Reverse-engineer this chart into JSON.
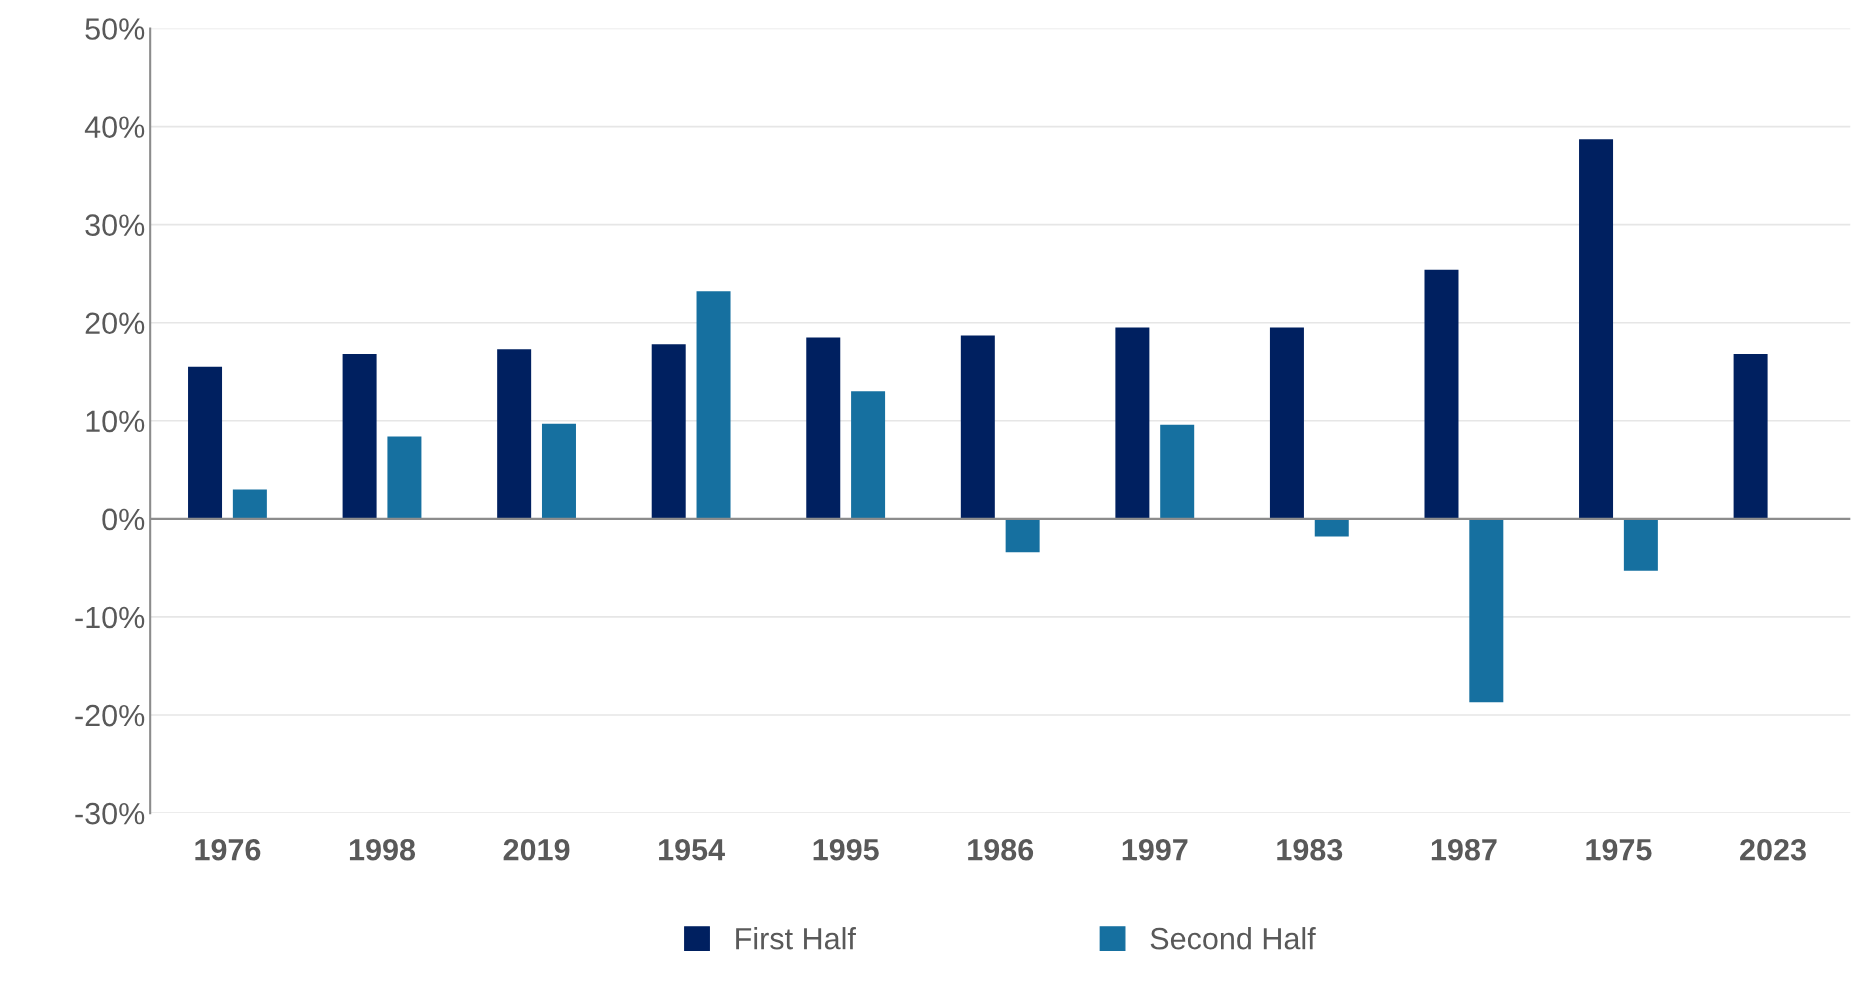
{
  "chart_data": {
    "type": "bar",
    "categories": [
      "1976",
      "1998",
      "2019",
      "1954",
      "1995",
      "1986",
      "1997",
      "1983",
      "1987",
      "1975",
      "2023"
    ],
    "series": [
      {
        "name": "First Half",
        "color": "#002060",
        "values": [
          15.5,
          16.8,
          17.3,
          17.8,
          18.5,
          18.7,
          19.5,
          19.5,
          25.4,
          38.7,
          16.8
        ]
      },
      {
        "name": "Second Half",
        "color": "#1670a0",
        "values": [
          3.0,
          8.4,
          9.7,
          23.2,
          13.0,
          -3.4,
          9.6,
          -1.8,
          -18.7,
          -5.3,
          null
        ]
      }
    ],
    "ylim": [
      -30,
      50
    ],
    "yticks": [
      {
        "value": -30,
        "label": "-30%"
      },
      {
        "value": -20,
        "label": "-20%"
      },
      {
        "value": -10,
        "label": "-10%"
      },
      {
        "value": 0,
        "label": "0%"
      },
      {
        "value": 10,
        "label": "10%"
      },
      {
        "value": 20,
        "label": "20%"
      },
      {
        "value": 30,
        "label": "30%"
      },
      {
        "value": 40,
        "label": "40%"
      },
      {
        "value": 50,
        "label": "50%"
      }
    ],
    "grid": "y",
    "legend": "bottom"
  }
}
